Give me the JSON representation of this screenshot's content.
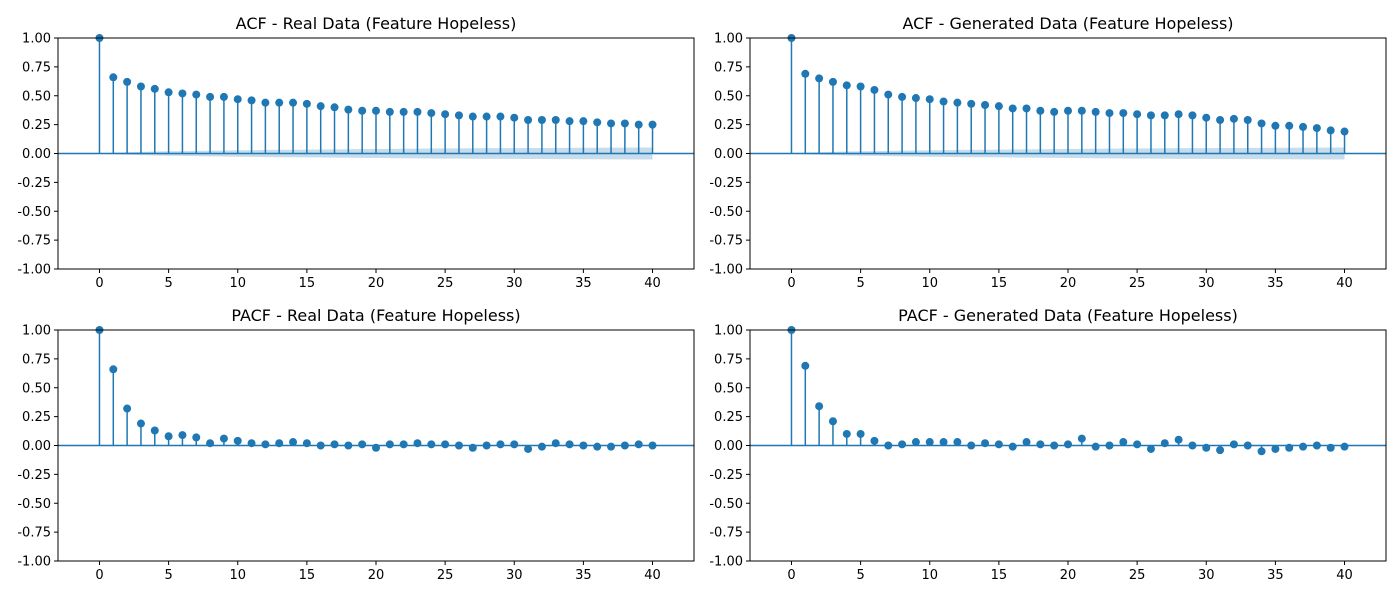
{
  "chart_data": [
    {
      "type": "stem",
      "title": "ACF - Real Data (Feature Hopeless)",
      "xlim": [
        -3,
        43
      ],
      "ylim": [
        -1.0,
        1.0
      ],
      "xticks": [
        0,
        5,
        10,
        15,
        20,
        25,
        30,
        35,
        40
      ],
      "yticks": [
        "-1.00",
        "-0.75",
        "-0.50",
        "-0.25",
        "0.00",
        "0.25",
        "0.50",
        "0.75",
        "1.00"
      ],
      "lags": [
        0,
        1,
        2,
        3,
        4,
        5,
        6,
        7,
        8,
        9,
        10,
        11,
        12,
        13,
        14,
        15,
        16,
        17,
        18,
        19,
        20,
        21,
        22,
        23,
        24,
        25,
        26,
        27,
        28,
        29,
        30,
        31,
        32,
        33,
        34,
        35,
        36,
        37,
        38,
        39,
        40
      ],
      "values": [
        1.0,
        0.66,
        0.62,
        0.58,
        0.56,
        0.53,
        0.52,
        0.51,
        0.49,
        0.49,
        0.47,
        0.46,
        0.44,
        0.44,
        0.44,
        0.43,
        0.41,
        0.4,
        0.38,
        0.37,
        0.37,
        0.36,
        0.36,
        0.36,
        0.35,
        0.34,
        0.33,
        0.32,
        0.32,
        0.32,
        0.31,
        0.29,
        0.29,
        0.29,
        0.28,
        0.28,
        0.27,
        0.26,
        0.26,
        0.25,
        0.25
      ],
      "confint_upper": [
        0.0,
        0.008,
        0.011,
        0.014,
        0.017,
        0.019,
        0.021,
        0.023,
        0.025,
        0.026,
        0.028,
        0.029,
        0.031,
        0.032,
        0.033,
        0.034,
        0.035,
        0.036,
        0.037,
        0.038,
        0.039,
        0.04,
        0.041,
        0.042,
        0.043,
        0.044,
        0.044,
        0.045,
        0.046,
        0.046,
        0.047,
        0.048,
        0.048,
        0.049,
        0.049,
        0.05,
        0.05,
        0.051,
        0.051,
        0.052,
        0.052
      ],
      "confidence_band": true,
      "grid": false
    },
    {
      "type": "stem",
      "title": "ACF - Generated Data (Feature Hopeless)",
      "xlim": [
        -3,
        43
      ],
      "ylim": [
        -1.0,
        1.0
      ],
      "xticks": [
        0,
        5,
        10,
        15,
        20,
        25,
        30,
        35,
        40
      ],
      "yticks": [
        "-1.00",
        "-0.75",
        "-0.50",
        "-0.25",
        "0.00",
        "0.25",
        "0.50",
        "0.75",
        "1.00"
      ],
      "lags": [
        0,
        1,
        2,
        3,
        4,
        5,
        6,
        7,
        8,
        9,
        10,
        11,
        12,
        13,
        14,
        15,
        16,
        17,
        18,
        19,
        20,
        21,
        22,
        23,
        24,
        25,
        26,
        27,
        28,
        29,
        30,
        31,
        32,
        33,
        34,
        35,
        36,
        37,
        38,
        39,
        40
      ],
      "values": [
        1.0,
        0.69,
        0.65,
        0.62,
        0.59,
        0.58,
        0.55,
        0.51,
        0.49,
        0.48,
        0.47,
        0.45,
        0.44,
        0.43,
        0.42,
        0.41,
        0.39,
        0.39,
        0.37,
        0.36,
        0.37,
        0.37,
        0.36,
        0.35,
        0.35,
        0.34,
        0.33,
        0.33,
        0.34,
        0.33,
        0.31,
        0.29,
        0.3,
        0.29,
        0.26,
        0.24,
        0.24,
        0.23,
        0.22,
        0.2,
        0.19
      ],
      "confint_upper": [
        0.0,
        0.008,
        0.011,
        0.014,
        0.017,
        0.019,
        0.021,
        0.023,
        0.025,
        0.026,
        0.028,
        0.029,
        0.031,
        0.032,
        0.033,
        0.034,
        0.035,
        0.036,
        0.037,
        0.038,
        0.039,
        0.04,
        0.041,
        0.042,
        0.043,
        0.044,
        0.044,
        0.045,
        0.046,
        0.046,
        0.047,
        0.048,
        0.048,
        0.049,
        0.049,
        0.05,
        0.05,
        0.051,
        0.051,
        0.052,
        0.052
      ],
      "confidence_band": true,
      "grid": false
    },
    {
      "type": "stem",
      "title": "PACF - Real Data (Feature Hopeless)",
      "xlim": [
        -3,
        43
      ],
      "ylim": [
        -1.0,
        1.0
      ],
      "xticks": [
        0,
        5,
        10,
        15,
        20,
        25,
        30,
        35,
        40
      ],
      "yticks": [
        "-1.00",
        "-0.75",
        "-0.50",
        "-0.25",
        "0.00",
        "0.25",
        "0.50",
        "0.75",
        "1.00"
      ],
      "lags": [
        0,
        1,
        2,
        3,
        4,
        5,
        6,
        7,
        8,
        9,
        10,
        11,
        12,
        13,
        14,
        15,
        16,
        17,
        18,
        19,
        20,
        21,
        22,
        23,
        24,
        25,
        26,
        27,
        28,
        29,
        30,
        31,
        32,
        33,
        34,
        35,
        36,
        37,
        38,
        39,
        40
      ],
      "values": [
        1.0,
        0.66,
        0.32,
        0.19,
        0.13,
        0.08,
        0.09,
        0.07,
        0.02,
        0.06,
        0.04,
        0.02,
        0.01,
        0.02,
        0.03,
        0.02,
        0.0,
        0.01,
        0.0,
        0.01,
        -0.02,
        0.01,
        0.01,
        0.02,
        0.01,
        0.01,
        0.0,
        -0.02,
        0.0,
        0.01,
        0.01,
        -0.03,
        -0.01,
        0.02,
        0.01,
        0.0,
        -0.01,
        -0.01,
        0.0,
        0.01,
        0.0
      ],
      "confidence_band": false,
      "grid": false
    },
    {
      "type": "stem",
      "title": "PACF - Generated Data (Feature Hopeless)",
      "xlim": [
        -3,
        43
      ],
      "ylim": [
        -1.0,
        1.0
      ],
      "xticks": [
        0,
        5,
        10,
        15,
        20,
        25,
        30,
        35,
        40
      ],
      "yticks": [
        "-1.00",
        "-0.75",
        "-0.50",
        "-0.25",
        "0.00",
        "0.25",
        "0.50",
        "0.75",
        "1.00"
      ],
      "lags": [
        0,
        1,
        2,
        3,
        4,
        5,
        6,
        7,
        8,
        9,
        10,
        11,
        12,
        13,
        14,
        15,
        16,
        17,
        18,
        19,
        20,
        21,
        22,
        23,
        24,
        25,
        26,
        27,
        28,
        29,
        30,
        31,
        32,
        33,
        34,
        35,
        36,
        37,
        38,
        39,
        40
      ],
      "values": [
        1.0,
        0.69,
        0.34,
        0.21,
        0.1,
        0.1,
        0.04,
        0.0,
        0.01,
        0.03,
        0.03,
        0.03,
        0.03,
        0.0,
        0.02,
        0.01,
        -0.01,
        0.03,
        0.01,
        0.0,
        0.01,
        0.06,
        -0.01,
        0.0,
        0.03,
        0.01,
        -0.03,
        0.02,
        0.05,
        0.0,
        -0.02,
        -0.04,
        0.01,
        0.0,
        -0.05,
        -0.03,
        -0.02,
        -0.01,
        0.0,
        -0.02,
        -0.01
      ],
      "confidence_band": false,
      "grid": false
    }
  ],
  "colors": {
    "series": "#1f77b4",
    "axis": "#000000",
    "background": "#ffffff"
  }
}
